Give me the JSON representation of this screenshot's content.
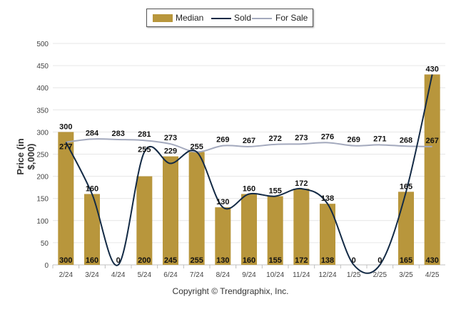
{
  "chart_data": {
    "type": "bar",
    "categories": [
      "2/24",
      "3/24",
      "4/24",
      "5/24",
      "6/24",
      "7/24",
      "8/24",
      "9/24",
      "10/24",
      "11/24",
      "12/24",
      "1/25",
      "2/25",
      "3/25",
      "4/25"
    ],
    "ylabel": "Price (in $,000)",
    "ylim": [
      0,
      500
    ],
    "yticks": [
      0,
      50,
      100,
      150,
      200,
      250,
      300,
      350,
      400,
      450,
      500
    ],
    "grid": true,
    "legend_placement": "top-center",
    "series": [
      {
        "name": "Median",
        "kind": "bar",
        "color": "#b8963c",
        "values": [
          300,
          160,
          0,
          200,
          245,
          255,
          130,
          160,
          155,
          172,
          138,
          0,
          0,
          165,
          430
        ]
      },
      {
        "name": "Sold",
        "kind": "line",
        "color": "#132a45",
        "values": [
          277,
          160,
          0,
          255,
          229,
          255,
          130,
          160,
          155,
          172,
          138,
          0,
          0,
          165,
          430
        ]
      },
      {
        "name": "For Sale",
        "kind": "line",
        "color": "#a3a9bd",
        "values": [
          277,
          284,
          283,
          281,
          273,
          255,
          269,
          267,
          272,
          273,
          276,
          269,
          271,
          268,
          267
        ]
      }
    ],
    "labels": {
      "top": [
        "300",
        "160",
        "",
        "",
        "229",
        "255",
        "130",
        "160",
        "155",
        "172",
        "138",
        "",
        "",
        "165",
        "430"
      ],
      "top_second": [
        "277",
        "",
        "",
        "255",
        "",
        "",
        "",
        "",
        "",
        "",
        "",
        "",
        "",
        "",
        ""
      ],
      "for_sale": [
        "",
        "284",
        "283",
        "281",
        "273",
        "",
        "269",
        "267",
        "272",
        "273",
        "276",
        "269",
        "271",
        "268",
        "267"
      ],
      "bottom": [
        "300",
        "160",
        "0",
        "200",
        "245",
        "255",
        "130",
        "160",
        "155",
        "172",
        "138",
        "0",
        "0",
        "165",
        "430"
      ]
    }
  },
  "copyright": "Copyright © Trendgraphix, Inc."
}
